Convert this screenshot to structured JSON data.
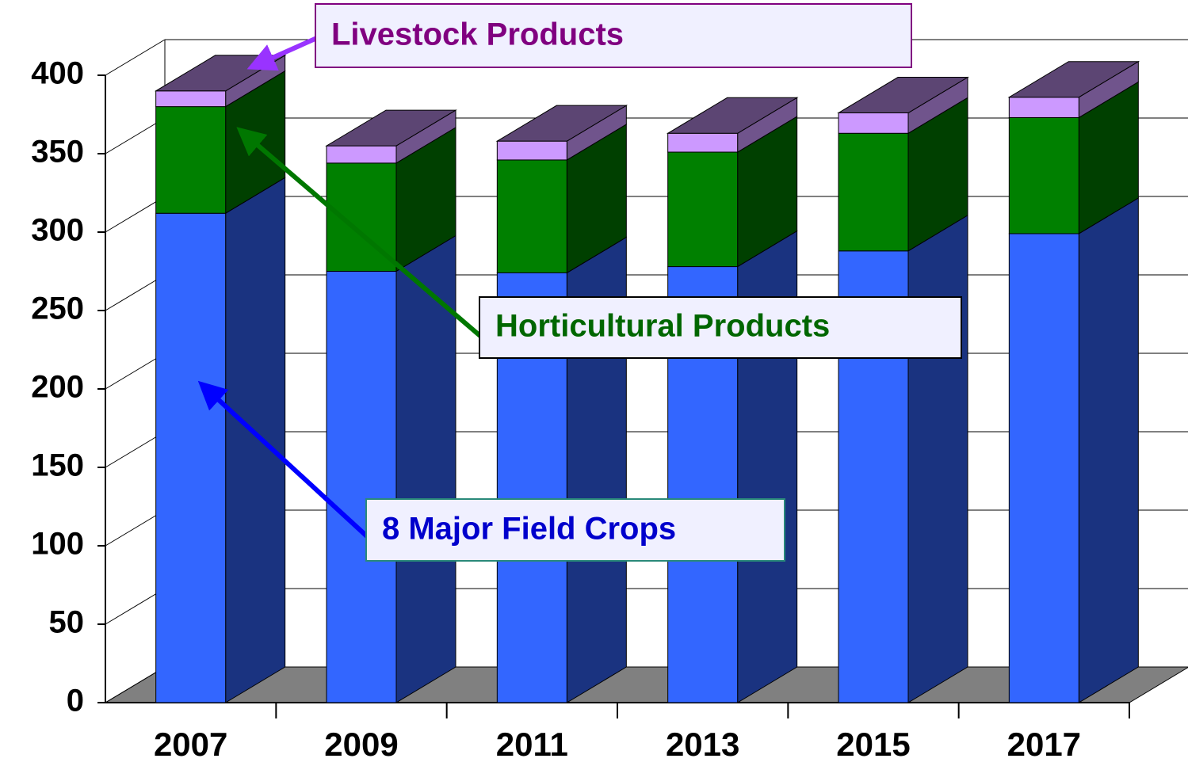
{
  "chart_data": {
    "type": "bar3d_stacked",
    "categories": [
      "2007",
      "2009",
      "2011",
      "2013",
      "2015",
      "2017"
    ],
    "series": [
      {
        "name": "8 Major Field Crops",
        "color": "#3366ff",
        "values": [
          312,
          275,
          274,
          278,
          288,
          299
        ]
      },
      {
        "name": "Horticultural Products",
        "color": "#008000",
        "values": [
          68,
          69,
          72,
          73,
          75,
          74
        ]
      },
      {
        "name": "Livestock Products",
        "color": "#cc99ff",
        "values": [
          10,
          11,
          12,
          12,
          13,
          13
        ]
      }
    ],
    "ylim": [
      0,
      400
    ],
    "yticks": [
      0,
      50,
      100,
      150,
      200,
      250,
      300,
      350,
      400
    ],
    "grid": true
  }
}
